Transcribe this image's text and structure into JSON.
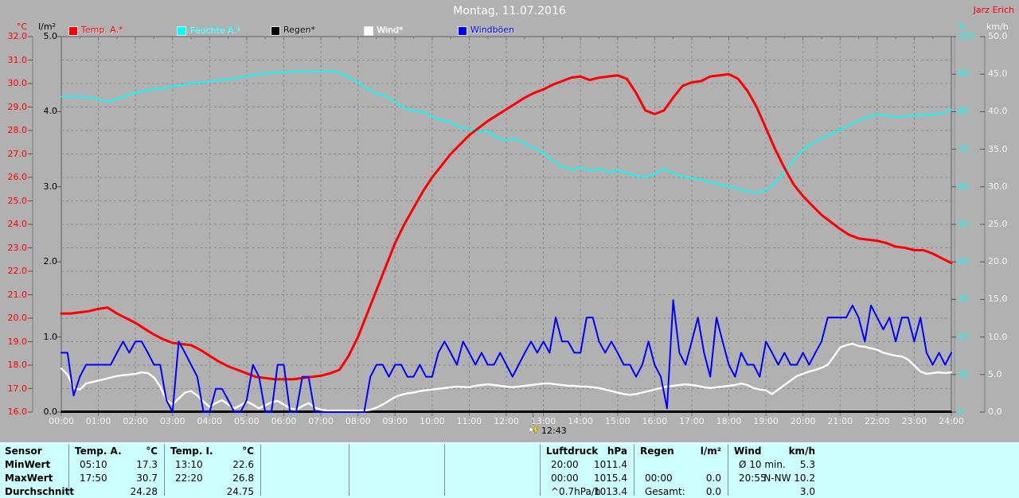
{
  "header": {
    "title": "Montag, 11.07.2016",
    "user": "Jarz Erich"
  },
  "units": {
    "temp": "°C",
    "rain": "l/m²",
    "humidity": "%",
    "wind": "km/h"
  },
  "legend": [
    {
      "label": "Temp. A.*",
      "color": "#ff0000"
    },
    {
      "label": "Feuchte A.*",
      "color": "#00ffff"
    },
    {
      "label": "Regen*",
      "color": "#000000"
    },
    {
      "label": "Wind*",
      "color": "#ffffff"
    },
    {
      "label": "Windböen",
      "color": "#0000ff"
    }
  ],
  "marker": {
    "time": "12:43",
    "x_hour": 12.72
  },
  "x_tick_labels": [
    "00:00",
    "01:00",
    "02:00",
    "03:00",
    "04:00",
    "05:00",
    "06:00",
    "07:00",
    "08:00",
    "09:00",
    "10:00",
    "11:00",
    "12:00",
    "13:00",
    "14:00",
    "15:00",
    "16:00",
    "17:00",
    "18:00",
    "19:00",
    "20:00",
    "21:00",
    "22:00",
    "23:00",
    "24:00"
  ],
  "chart_data": {
    "type": "line",
    "title": "Montag, 11.07.2016",
    "x_axis": {
      "label": "time",
      "min_hour": 0,
      "max_hour": 24,
      "tick_step_hours": 1
    },
    "axes": {
      "temp": {
        "unit": "°C",
        "min": 16,
        "max": 32,
        "step": 1,
        "color": "#ff0000",
        "side": "left-outer",
        "decimals": 1
      },
      "rain": {
        "unit": "l/m²",
        "min": 0,
        "max": 5,
        "step": 1,
        "color": "#000000",
        "side": "left-inner",
        "decimals": 1
      },
      "humidity": {
        "unit": "%",
        "min": 0,
        "max": 100,
        "step": 10,
        "color": "#00ffff",
        "side": "right-inner",
        "decimals": 0
      },
      "wind": {
        "unit": "km/h",
        "min": 0,
        "max": 50,
        "step": 5,
        "color": "#f5f5f5",
        "side": "right-outer",
        "decimals": 1
      }
    },
    "series": [
      {
        "name": "Feuchte A.",
        "axis": "humidity",
        "color": "#00ffff",
        "width": 1.8,
        "step_minutes": 15,
        "values": [
          84,
          84,
          84,
          83.8,
          83.2,
          82.6,
          83.4,
          84.2,
          85,
          85.6,
          86,
          86.2,
          86.8,
          87,
          87.6,
          87.7,
          88,
          88.4,
          88.6,
          89,
          89.4,
          89.9,
          90.2,
          90.4,
          90.6,
          90.7,
          90.8,
          90.7,
          90.7,
          90.9,
          90.3,
          89.2,
          87.8,
          86.2,
          84.8,
          84.2,
          82.6,
          81,
          80.2,
          80,
          78.6,
          77.8,
          77.2,
          75.8,
          75.4,
          74.6,
          74.8,
          73.2,
          72.4,
          72.8,
          71.6,
          70.4,
          69,
          67,
          65.4,
          64.6,
          65.2,
          64.2,
          64.8,
          63.8,
          64.4,
          63.6,
          63,
          62.6,
          63.4,
          64.8,
          63.6,
          62.8,
          62.4,
          62,
          61.2,
          60.6,
          60.2,
          59.4,
          58.8,
          58.4,
          59.2,
          61,
          64,
          67,
          69.8,
          71.6,
          72.8,
          74,
          75.2,
          76.4,
          77.6,
          78.6,
          79.2,
          79,
          78.6,
          78.8,
          79,
          79.2,
          79.2,
          79.6,
          80.6
        ]
      },
      {
        "name": "Temp. A.",
        "axis": "temp",
        "color": "#ff0000",
        "width": 3,
        "step_minutes": 15,
        "values": [
          20.2,
          20.2,
          20.25,
          20.3,
          20.4,
          20.45,
          20.2,
          20,
          19.8,
          19.55,
          19.3,
          19.1,
          18.95,
          18.9,
          18.85,
          18.65,
          18.4,
          18.15,
          17.95,
          17.8,
          17.65,
          17.5,
          17.45,
          17.4,
          17.4,
          17.4,
          17.45,
          17.5,
          17.55,
          17.65,
          17.8,
          18.4,
          19.2,
          20.2,
          21.2,
          22.2,
          23.2,
          24,
          24.7,
          25.4,
          26,
          26.5,
          27,
          27.4,
          27.8,
          28.1,
          28.4,
          28.65,
          28.9,
          29.15,
          29.4,
          29.6,
          29.75,
          29.95,
          30.1,
          30.25,
          30.3,
          30.15,
          30.25,
          30.3,
          30.35,
          30.2,
          29.6,
          28.85,
          28.7,
          28.85,
          29.4,
          29.9,
          30.05,
          30.1,
          30.3,
          30.35,
          30.4,
          30.2,
          29.7,
          29,
          28.1,
          27.2,
          26.4,
          25.7,
          25.2,
          24.8,
          24.4,
          24.1,
          23.8,
          23.55,
          23.4,
          23.35,
          23.3,
          23.2,
          23.05,
          23,
          22.9,
          22.9,
          22.75,
          22.55,
          22.35
        ]
      },
      {
        "name": "Regen",
        "axis": "rain",
        "color": "#000000",
        "width": 2,
        "step_minutes": 1440,
        "values": [
          0,
          0
        ]
      },
      {
        "name": "Wind",
        "axis": "wind",
        "color": "#ffffff",
        "width": 2.4,
        "step_minutes": 10,
        "values": [
          5.8,
          5,
          3.2,
          3,
          3.8,
          4,
          4.2,
          4.4,
          4.6,
          4.8,
          4.9,
          5,
          5.1,
          5.3,
          5.2,
          4.6,
          3.4,
          1.6,
          1,
          1.8,
          2.6,
          2.8,
          2.2,
          1.4,
          0.7,
          1.2,
          1.6,
          1,
          0.5,
          0.9,
          1.4,
          1,
          0.5,
          0.9,
          1.3,
          1.5,
          1,
          0.5,
          0.3,
          0.8,
          1.2,
          0.6,
          0.3,
          0.2,
          0.2,
          0.2,
          0.2,
          0.2,
          0.2,
          0.2,
          0.3,
          0.6,
          1,
          1.5,
          2,
          2.3,
          2.5,
          2.6,
          2.8,
          2.9,
          3,
          3.1,
          3.2,
          3.3,
          3.4,
          3.35,
          3.3,
          3.5,
          3.6,
          3.7,
          3.6,
          3.5,
          3.4,
          3.3,
          3.4,
          3.5,
          3.6,
          3.7,
          3.8,
          3.8,
          3.7,
          3.6,
          3.5,
          3.5,
          3.4,
          3.4,
          3.3,
          3.2,
          3,
          2.8,
          2.6,
          2.4,
          2.3,
          2.4,
          2.6,
          2.8,
          3,
          3.2,
          3.4,
          3.5,
          3.6,
          3.7,
          3.6,
          3.5,
          3.3,
          3.2,
          3.3,
          3.4,
          3.5,
          3.6,
          3.8,
          3.6,
          3.2,
          3,
          2.9,
          2.4,
          3,
          3.6,
          4.2,
          4.8,
          5.1,
          5.4,
          5.6,
          5.9,
          6.3,
          7.4,
          8.6,
          8.9,
          9.1,
          8.8,
          8.7,
          8.5,
          8.3,
          7.9,
          7.7,
          7.5,
          7.4,
          7,
          6.2,
          5.4,
          5.1,
          5.2,
          5.3,
          5.2,
          5.3
        ]
      },
      {
        "name": "Windböen",
        "axis": "wind",
        "color": "#0000ff",
        "width": 2,
        "step_minutes": 10,
        "values": [
          7.9,
          7.9,
          2.2,
          4.7,
          6.3,
          6.3,
          6.3,
          6.3,
          6.3,
          7.9,
          9.4,
          7.9,
          9.4,
          9.4,
          7.9,
          6.3,
          6.3,
          1.6,
          0,
          9.4,
          7.9,
          6.3,
          4.7,
          0,
          0,
          3.1,
          3.1,
          1.6,
          0,
          0,
          1.6,
          6.3,
          4.7,
          0,
          0,
          6.3,
          6.3,
          0,
          0,
          4.7,
          4.7,
          0,
          0,
          0,
          0,
          0,
          0,
          0,
          0,
          0,
          4.7,
          6.3,
          6.3,
          4.7,
          6.3,
          6.3,
          4.7,
          4.7,
          6.3,
          4.7,
          4.7,
          7.9,
          9.4,
          7.9,
          6.3,
          9.4,
          7.9,
          6.3,
          7.9,
          6.3,
          6.3,
          7.9,
          6.3,
          4.7,
          6.3,
          7.9,
          9.4,
          7.9,
          9.4,
          7.9,
          12.6,
          9.4,
          9.4,
          7.9,
          7.9,
          12.6,
          12.6,
          9.4,
          7.9,
          9.4,
          7.9,
          6.3,
          6.3,
          4.7,
          6.3,
          9.4,
          6.3,
          4.7,
          0.5,
          14.9,
          7.9,
          6.3,
          9.4,
          12.6,
          7.9,
          4.7,
          12.6,
          9.4,
          6.3,
          4.7,
          7.9,
          6.3,
          6.3,
          4.7,
          9.4,
          7.9,
          6.3,
          7.9,
          6.3,
          6.3,
          7.9,
          6.3,
          7.9,
          9.4,
          12.6,
          12.6,
          12.6,
          12.6,
          14.2,
          12.6,
          9.4,
          14.2,
          12.6,
          11,
          12.6,
          9.4,
          12.6,
          12.6,
          9.4,
          12.6,
          7.9,
          6.3,
          7.9,
          6.3,
          7.9
        ]
      }
    ]
  },
  "table": {
    "row_labels": [
      "Sensor",
      "MinWert",
      "MaxWert",
      "Durchschnitt"
    ],
    "columns": [
      {
        "name": "Temp. A.",
        "unit": "°C",
        "rows": [
          [
            "05:10",
            "17.3"
          ],
          [
            "17:50",
            "30.7"
          ],
          [
            "",
            "24.28"
          ]
        ]
      },
      {
        "name": "Temp. I.",
        "unit": "°C",
        "rows": [
          [
            "13:10",
            "22.6"
          ],
          [
            "22:20",
            "26.8"
          ],
          [
            "",
            "24.75"
          ]
        ]
      },
      {
        "name": "",
        "unit": "",
        "rows": [
          [
            "",
            ""
          ],
          [
            "",
            ""
          ],
          [
            "",
            ""
          ]
        ]
      },
      {
        "name": "",
        "unit": "",
        "rows": [
          [
            "",
            ""
          ],
          [
            "",
            ""
          ],
          [
            "",
            ""
          ]
        ]
      },
      {
        "name": "",
        "unit": "",
        "rows": [
          [
            "",
            ""
          ],
          [
            "",
            ""
          ],
          [
            "",
            ""
          ]
        ]
      },
      {
        "name": "Luftdruck",
        "unit": "hPa",
        "rows": [
          [
            "20:00",
            "1011.4"
          ],
          [
            "00:00",
            "1015.4"
          ],
          [
            "^0.7hPa/h",
            "1013.4"
          ]
        ]
      },
      {
        "name": "Regen",
        "unit": "l/m²",
        "rows": [
          [
            "",
            ""
          ],
          [
            "00:00",
            "0.0"
          ],
          [
            "Gesamt:",
            "0.0"
          ]
        ]
      },
      {
        "name": "Wind",
        "unit": "km/h",
        "rows": [
          [
            "Ø 10 min.",
            "5.3"
          ],
          [
            "20:55",
            "N-NW 10.2"
          ],
          [
            "",
            "3.0"
          ]
        ]
      }
    ]
  }
}
